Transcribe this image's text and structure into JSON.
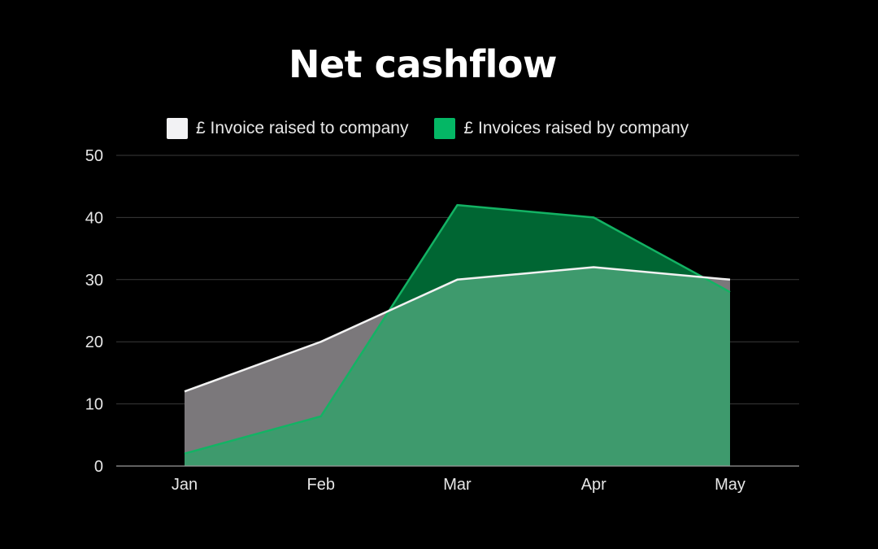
{
  "chart_data": {
    "type": "area",
    "title": "Net cashflow",
    "categories": [
      "Jan",
      "Feb",
      "Mar",
      "Apr",
      "May"
    ],
    "series": [
      {
        "name": "£ Invoice raised to company",
        "values": [
          12,
          20,
          30,
          32,
          30
        ],
        "line_color": "#f2f2f2",
        "fill_color": "#7b787b",
        "swatch_color": "#f2f2f4"
      },
      {
        "name": "£ Invoices raised by company",
        "values": [
          2,
          8,
          42,
          40,
          28
        ],
        "line_color": "#13b364",
        "fill_color": "#006633",
        "swatch_color": "#04b765"
      }
    ],
    "overlap_fill_color": "#3e9a6d",
    "ylim": [
      0,
      50
    ],
    "yticks": [
      0,
      10,
      20,
      30,
      40,
      50
    ],
    "grid": true,
    "legend_position": "top",
    "xlabel": "",
    "ylabel": ""
  }
}
